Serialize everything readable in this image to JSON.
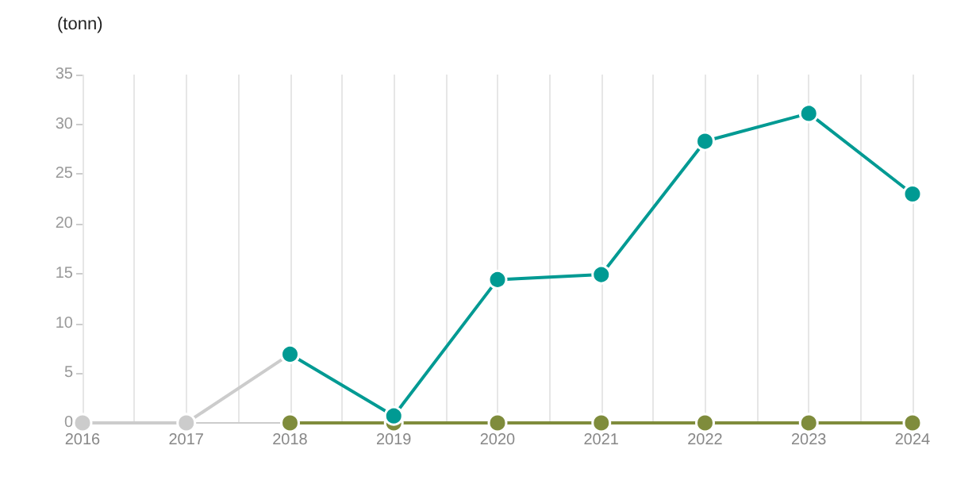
{
  "chart_data": {
    "type": "line",
    "ylabel": "(tonn)",
    "x": [
      2016,
      2017,
      2018,
      2019,
      2020,
      2021,
      2022,
      2023,
      2024
    ],
    "xlim": [
      2016,
      2024
    ],
    "xticks": [
      2016,
      {
        "value": 2016.5,
        "label": null
      },
      2017,
      {
        "value": 2017.5,
        "label": null
      },
      2018,
      {
        "value": 2018.5,
        "label": null
      },
      2019,
      {
        "value": 2019.5,
        "label": null
      },
      2020,
      {
        "value": 2020.5,
        "label": null
      },
      2021,
      {
        "value": 2021.5,
        "label": null
      },
      2022,
      {
        "value": 2022.5,
        "label": null
      },
      2023,
      {
        "value": 2023.5,
        "label": null
      },
      2024
    ],
    "ylim": [
      0,
      35
    ],
    "yticks": [
      0,
      5,
      10,
      15,
      20,
      25,
      30,
      35
    ],
    "grid": "x",
    "marker": "circle",
    "line_style": "solid",
    "series": [
      {
        "color": "#cccccc",
        "values": [
          0,
          0,
          6.9,
          null,
          null,
          null,
          null,
          null,
          null
        ]
      },
      {
        "color": "#7f8c3c",
        "values": [
          null,
          null,
          0,
          0,
          0,
          0,
          0,
          0,
          0
        ]
      },
      {
        "color": "#009a93",
        "values": [
          null,
          null,
          6.9,
          0.7,
          14.4,
          14.9,
          28.3,
          31.1,
          23
        ]
      }
    ]
  }
}
